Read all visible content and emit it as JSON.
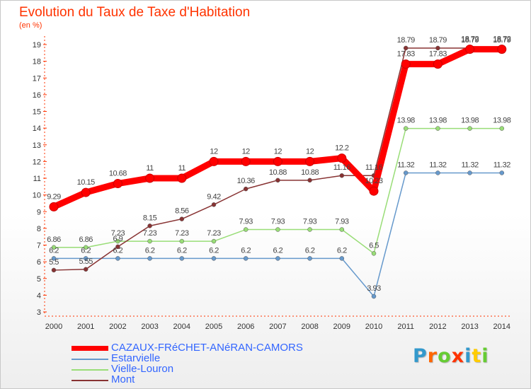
{
  "header": {
    "title": "Evolution du Taux de Taxe d'Habitation",
    "unit": "(en %)"
  },
  "logo": {
    "text": "Proxiti",
    "letter_colors": [
      "#3399cc",
      "#ff6600",
      "#66cc33",
      "#ff3300",
      "#3399cc",
      "#ffcc00",
      "#66cc33"
    ]
  },
  "chart_data": {
    "type": "line",
    "title": "Evolution du Taux de Taxe d'Habitation",
    "ylabel": "(en %)",
    "x": [
      "2000",
      "2001",
      "2002",
      "2003",
      "2004",
      "2005",
      "2006",
      "2007",
      "2008",
      "2009",
      "2010",
      "2011",
      "2012",
      "2013",
      "2014"
    ],
    "ylim": [
      3,
      19
    ],
    "yticks": [
      3,
      4,
      5,
      6,
      7,
      8,
      9,
      10,
      11,
      12,
      13,
      14,
      15,
      16,
      17,
      18,
      19
    ],
    "grid": false,
    "legend_position": "bottom-left",
    "series": [
      {
        "name": "CAZAUX-FRéCHET-ANéRAN-CAMORS",
        "color": "#ff0000",
        "values": [
          9.29,
          10.15,
          10.68,
          11,
          11,
          12,
          12,
          12,
          12,
          12.2,
          10.23,
          17.83,
          17.83,
          18.72,
          18.72
        ],
        "labels": [
          "9.29",
          "10.15",
          "10.68",
          "11",
          "11",
          "12",
          "12",
          "12",
          "12",
          "12.2",
          "10.23",
          "17.83",
          "17.83",
          "18.72",
          "18.72"
        ]
      },
      {
        "name": "Estarvielle",
        "color": "#6699cc",
        "values": [
          6.2,
          6.2,
          6.2,
          6.2,
          6.2,
          6.2,
          6.2,
          6.2,
          6.2,
          6.2,
          3.93,
          11.32,
          11.32,
          11.32,
          11.32
        ],
        "labels": [
          "6.2",
          "6.2",
          "6.2",
          "6.2",
          "6.2",
          "6.2",
          "6.2",
          "6.2",
          "6.2",
          "6.2",
          "3.93",
          "11.32",
          "11.32",
          "11.32",
          "11.32"
        ]
      },
      {
        "name": "Vielle-Louron",
        "color": "#99dd77",
        "values": [
          6.86,
          6.86,
          7.23,
          7.23,
          7.23,
          7.23,
          7.93,
          7.93,
          7.93,
          7.93,
          6.5,
          13.98,
          13.98,
          13.98,
          13.98
        ],
        "labels": [
          "6.86",
          "6.86",
          "7.23",
          "7.23",
          "7.23",
          "7.23",
          "7.93",
          "7.93",
          "7.93",
          "7.93",
          "6.5",
          "13.98",
          "13.98",
          "13.98",
          "13.98"
        ]
      },
      {
        "name": "Mont",
        "color": "#883333",
        "values": [
          5.5,
          5.55,
          6.9,
          8.15,
          8.56,
          9.42,
          10.36,
          10.88,
          10.88,
          11.16,
          11.16,
          18.79,
          18.79,
          18.79,
          18.79
        ],
        "labels": [
          "5.5",
          "5.55",
          "6.9",
          "8.15",
          "8.56",
          "9.42",
          "10.36",
          "10.88",
          "10.88",
          "11.16",
          "11.16",
          "18.79",
          "18.79",
          "18.79",
          "18.79"
        ]
      }
    ]
  }
}
